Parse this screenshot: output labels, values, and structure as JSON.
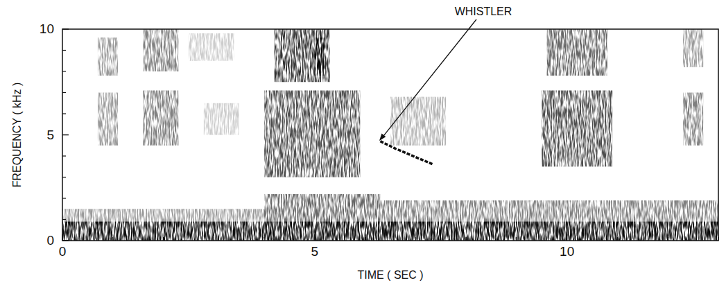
{
  "chart_data": {
    "type": "spectrogram",
    "x_label": "TIME ( SEC )",
    "y_label": "FREQUENCY ( kHz )",
    "xlim": [
      0,
      13
    ],
    "ylim": [
      0,
      10
    ],
    "xticks": [
      0,
      5,
      10
    ],
    "yticks": [
      0,
      5,
      10
    ],
    "xminor_ticks": [
      1,
      2,
      3,
      4,
      6,
      7,
      8,
      9,
      11,
      12,
      13
    ],
    "yminor_ticks": [
      1,
      2,
      3,
      4,
      6,
      7,
      8,
      9
    ],
    "bursts": [
      {
        "time": [
          0,
          13
        ],
        "freq": [
          0,
          0.9
        ],
        "level": 0.9
      },
      {
        "time": [
          0,
          4
        ],
        "freq": [
          0,
          1.5
        ],
        "level": 0.4
      },
      {
        "time": [
          4,
          6.3
        ],
        "freq": [
          0,
          2.2
        ],
        "level": 0.6
      },
      {
        "time": [
          6.3,
          13
        ],
        "freq": [
          0,
          1.9
        ],
        "level": 0.5
      },
      {
        "time": [
          0.7,
          1.1
        ],
        "freq": [
          4.5,
          7
        ],
        "level": 0.4
      },
      {
        "time": [
          1.6,
          2.3
        ],
        "freq": [
          4.5,
          7.1
        ],
        "level": 0.5
      },
      {
        "time": [
          2.8,
          3.5
        ],
        "freq": [
          5,
          6.5
        ],
        "level": 0.2
      },
      {
        "time": [
          4.0,
          5.9
        ],
        "freq": [
          3,
          7.1
        ],
        "level": 0.7
      },
      {
        "time": [
          6.5,
          7.6
        ],
        "freq": [
          4.5,
          6.8
        ],
        "level": 0.3
      },
      {
        "time": [
          9.5,
          10.9
        ],
        "freq": [
          3.5,
          7.1
        ],
        "level": 0.7
      },
      {
        "time": [
          12.3,
          12.7
        ],
        "freq": [
          4.5,
          7
        ],
        "level": 0.5
      },
      {
        "time": [
          0.7,
          1.1
        ],
        "freq": [
          7.8,
          9.6
        ],
        "level": 0.4
      },
      {
        "time": [
          1.6,
          2.3
        ],
        "freq": [
          8,
          10
        ],
        "level": 0.5
      },
      {
        "time": [
          2.5,
          3.4
        ],
        "freq": [
          8.5,
          9.8
        ],
        "level": 0.2
      },
      {
        "time": [
          4.2,
          5.3
        ],
        "freq": [
          7.5,
          10
        ],
        "level": 0.8
      },
      {
        "time": [
          5.0,
          5.2
        ],
        "freq": [
          7.8,
          9.6
        ],
        "level": 0.9
      },
      {
        "time": [
          9.6,
          10.8
        ],
        "freq": [
          7.8,
          10
        ],
        "level": 0.6
      },
      {
        "time": [
          12.3,
          12.7
        ],
        "freq": [
          8.2,
          10
        ],
        "level": 0.4
      }
    ],
    "series": [
      {
        "name": "WHISTLER",
        "color": "#111111",
        "x": [
          6.3,
          6.6,
          6.9,
          7.1,
          7.35
        ],
        "values": [
          4.7,
          4.35,
          4.05,
          3.85,
          3.6
        ]
      }
    ],
    "annotations": [
      {
        "text": "WHISTLER",
        "x": 6.28,
        "y": 4.72
      }
    ]
  }
}
